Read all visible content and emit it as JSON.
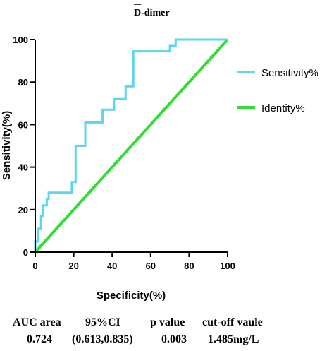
{
  "chart_data": {
    "type": "line",
    "title": "D-dimer",
    "xlabel": "Specificity(%)",
    "ylabel": "Sensitivity(%)",
    "xlim": [
      0,
      100
    ],
    "ylim": [
      0,
      100
    ],
    "xticks": [
      "0",
      "20",
      "40",
      "60",
      "80",
      "100"
    ],
    "yticks": [
      "0",
      "20",
      "40",
      "60",
      "80",
      "100"
    ],
    "grid": false,
    "legend_position": "right",
    "series": [
      {
        "name": "Sensitivity%",
        "color": "#5ad6f0",
        "x": [
          0,
          0,
          1.5,
          1.5,
          3,
          3,
          4,
          4,
          6,
          6,
          7,
          7,
          10,
          10,
          19,
          19,
          21,
          21,
          26,
          26,
          31,
          31,
          35,
          35,
          41,
          41,
          47,
          47,
          51,
          51,
          60,
          60,
          70,
          70,
          73,
          73,
          100
        ],
        "y": [
          0,
          5,
          5,
          11,
          11,
          17,
          17,
          22,
          22,
          25,
          25,
          28,
          28,
          28,
          28,
          33,
          33,
          50,
          50,
          61,
          61,
          61,
          61,
          67,
          67,
          72,
          72,
          78,
          78,
          94.5,
          94.5,
          94.5,
          94.5,
          97,
          97,
          100,
          100
        ]
      },
      {
        "name": "Identity%",
        "color": "#33dd33",
        "x": [
          0,
          100
        ],
        "y": [
          0,
          100
        ]
      }
    ]
  },
  "stats": {
    "headers": [
      "AUC area",
      "95%CI",
      "p value",
      "cut-off vaule"
    ],
    "values": [
      "0.724",
      "(0.613,0.835)",
      "0.003",
      "1.485mg/L"
    ]
  }
}
